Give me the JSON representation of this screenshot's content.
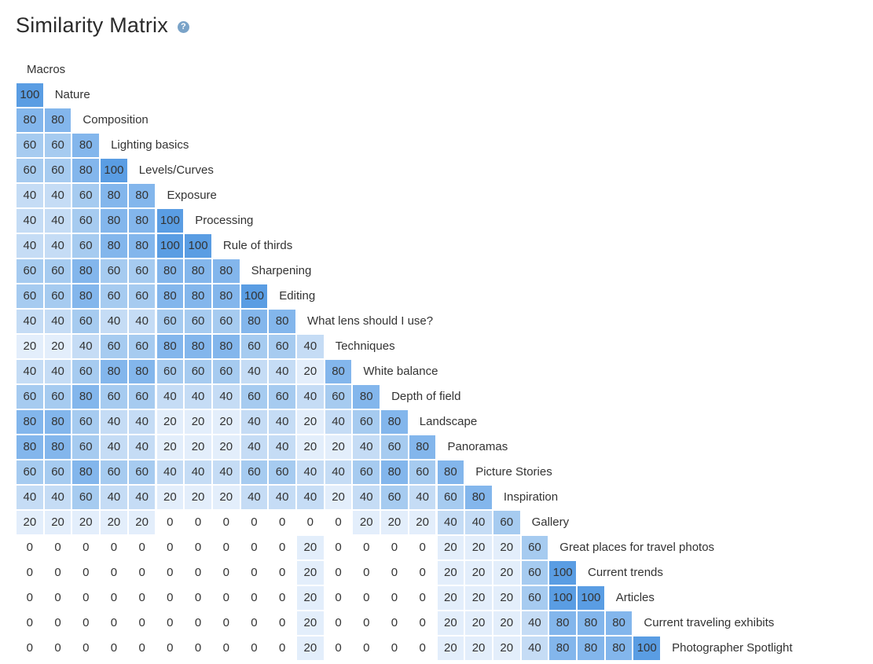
{
  "header": {
    "title": "Similarity Matrix",
    "help_icon": "question-circle-icon",
    "help_glyph": "?"
  },
  "colors": {
    "v0": "#ffffff",
    "v20": "#e3eefb",
    "v40": "#c5dcf5",
    "v60": "#a6cbf0",
    "v80": "#83b6ec",
    "v100": "#5a9de3"
  },
  "chart_data": {
    "type": "heatmap",
    "title": "Similarity Matrix",
    "labels": [
      "Macros",
      "Nature",
      "Composition",
      "Lighting basics",
      "Levels/Curves",
      "Exposure",
      "Processing",
      "Rule of thirds",
      "Sharpening",
      "Editing",
      "What lens should I use?",
      "Techniques",
      "White balance",
      "Depth of field",
      "Landscape",
      "Panoramas",
      "Picture Stories",
      "Inspiration",
      "Gallery",
      "Great places for travel photos",
      "Current trends",
      "Articles",
      "Current traveling exhibits",
      "Photographer Spotlight"
    ],
    "rows": [
      [],
      [
        100
      ],
      [
        80,
        80
      ],
      [
        60,
        60,
        80
      ],
      [
        60,
        60,
        80,
        100
      ],
      [
        40,
        40,
        60,
        80,
        80
      ],
      [
        40,
        40,
        60,
        80,
        80,
        100
      ],
      [
        40,
        40,
        60,
        80,
        80,
        100,
        100
      ],
      [
        60,
        60,
        80,
        60,
        60,
        80,
        80,
        80
      ],
      [
        60,
        60,
        80,
        60,
        60,
        80,
        80,
        80,
        100
      ],
      [
        40,
        40,
        60,
        40,
        40,
        60,
        60,
        60,
        80,
        80
      ],
      [
        20,
        20,
        40,
        60,
        60,
        80,
        80,
        80,
        60,
        60,
        40
      ],
      [
        40,
        40,
        60,
        80,
        80,
        60,
        60,
        60,
        40,
        40,
        20,
        80
      ],
      [
        60,
        60,
        80,
        60,
        60,
        40,
        40,
        40,
        60,
        60,
        40,
        60,
        80
      ],
      [
        80,
        80,
        60,
        40,
        40,
        20,
        20,
        20,
        40,
        40,
        20,
        40,
        60,
        80
      ],
      [
        80,
        80,
        60,
        40,
        40,
        20,
        20,
        20,
        40,
        40,
        20,
        20,
        40,
        60,
        80
      ],
      [
        60,
        60,
        80,
        60,
        60,
        40,
        40,
        40,
        60,
        60,
        40,
        40,
        60,
        80,
        60,
        80
      ],
      [
        40,
        40,
        60,
        40,
        40,
        20,
        20,
        20,
        40,
        40,
        40,
        20,
        40,
        60,
        40,
        60,
        80
      ],
      [
        20,
        20,
        20,
        20,
        20,
        0,
        0,
        0,
        0,
        0,
        0,
        0,
        20,
        20,
        20,
        40,
        40,
        60
      ],
      [
        0,
        0,
        0,
        0,
        0,
        0,
        0,
        0,
        0,
        0,
        20,
        0,
        0,
        0,
        0,
        20,
        20,
        20,
        60
      ],
      [
        0,
        0,
        0,
        0,
        0,
        0,
        0,
        0,
        0,
        0,
        20,
        0,
        0,
        0,
        0,
        20,
        20,
        20,
        60,
        100
      ],
      [
        0,
        0,
        0,
        0,
        0,
        0,
        0,
        0,
        0,
        0,
        20,
        0,
        0,
        0,
        0,
        20,
        20,
        20,
        60,
        100,
        100
      ],
      [
        0,
        0,
        0,
        0,
        0,
        0,
        0,
        0,
        0,
        0,
        20,
        0,
        0,
        0,
        0,
        20,
        20,
        20,
        40,
        80,
        80,
        80
      ],
      [
        0,
        0,
        0,
        0,
        0,
        0,
        0,
        0,
        0,
        0,
        20,
        0,
        0,
        0,
        0,
        20,
        20,
        20,
        40,
        80,
        80,
        80,
        100
      ]
    ],
    "value_range": [
      0,
      100
    ],
    "grid": true,
    "legend": "none"
  }
}
